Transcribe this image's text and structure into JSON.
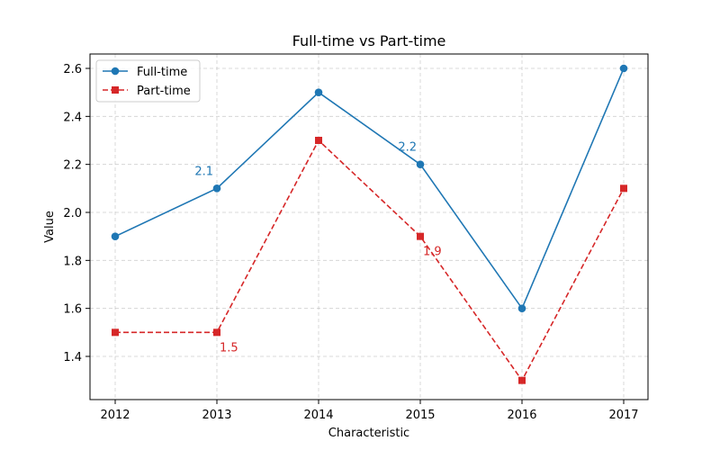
{
  "chart_data": {
    "type": "line",
    "title": "Full-time vs Part-time",
    "xlabel": "Characteristic",
    "ylabel": "Value",
    "categories": [
      "2012",
      "2013",
      "2014",
      "2015",
      "2016",
      "2017"
    ],
    "ylim": [
      1.22,
      2.66
    ],
    "yticks": [
      1.4,
      1.6,
      1.8,
      2.0,
      2.2,
      2.4,
      2.6
    ],
    "ytick_labels": [
      "1.4",
      "1.6",
      "1.8",
      "2.0",
      "2.2",
      "2.4",
      "2.6"
    ],
    "grid": true,
    "legend_position": "top-left",
    "series": [
      {
        "name": "Full-time",
        "values": [
          1.9,
          2.1,
          2.5,
          2.2,
          1.6,
          2.6
        ],
        "color": "#1f77b4",
        "line_style": "solid",
        "marker": "circle",
        "annotations": [
          {
            "index": 1,
            "text": "2.1",
            "placement": "above-left"
          },
          {
            "index": 3,
            "text": "2.2",
            "placement": "above-left"
          }
        ]
      },
      {
        "name": "Part-time",
        "values": [
          1.5,
          1.5,
          2.3,
          1.9,
          1.3,
          2.1
        ],
        "color": "#d62728",
        "line_style": "dashed",
        "marker": "square",
        "annotations": [
          {
            "index": 1,
            "text": "1.5",
            "placement": "below-right"
          },
          {
            "index": 3,
            "text": "1.9",
            "placement": "below-right"
          }
        ]
      }
    ]
  }
}
